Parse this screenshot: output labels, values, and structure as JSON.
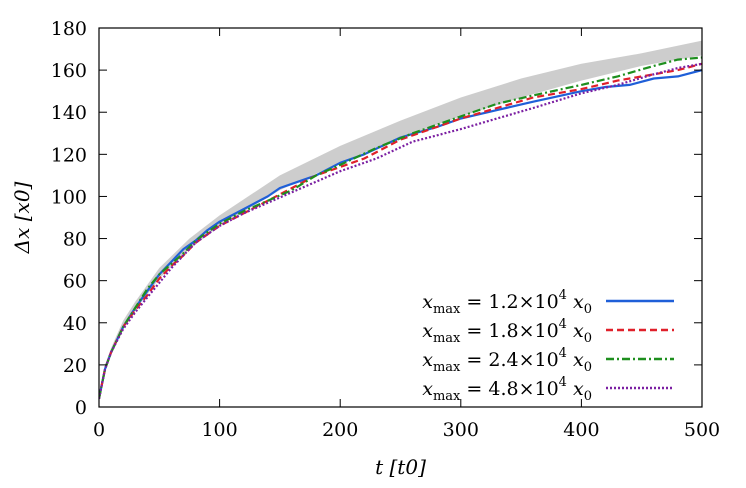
{
  "chart_data": {
    "type": "line",
    "xlabel": "t [t0]",
    "ylabel": "Δx [x0]",
    "xlim": [
      0,
      500
    ],
    "ylim": [
      0,
      180
    ],
    "xticks": [
      0,
      100,
      200,
      300,
      400,
      500
    ],
    "yticks": [
      0,
      20,
      40,
      60,
      80,
      100,
      120,
      140,
      160,
      180
    ],
    "xtick_labels": [
      "0",
      "100",
      "200",
      "300",
      "400",
      "500"
    ],
    "ytick_labels": [
      "0",
      "20",
      "40",
      "60",
      "80",
      "100",
      "120",
      "140",
      "160",
      "180"
    ],
    "grid": false,
    "legend_position": "bottom-right",
    "band": {
      "x": [
        0,
        5,
        10,
        20,
        30,
        50,
        75,
        100,
        150,
        200,
        250,
        300,
        350,
        400,
        450,
        500
      ],
      "lower": [
        4,
        17,
        25,
        37,
        46,
        61,
        75,
        86,
        103,
        116,
        128,
        138,
        147,
        155,
        162,
        167
      ],
      "upper": [
        6,
        20,
        28,
        41,
        50,
        66,
        80,
        91,
        110,
        124,
        136,
        147,
        156,
        163,
        168,
        174
      ],
      "color": "#c8c8c8"
    },
    "series": [
      {
        "name": "xmax = 1.2×10^4 x0",
        "label_var": "x",
        "label_sub": "max",
        "label_eq": " = 1.2×10",
        "label_exp": "4",
        "label_unit": " x",
        "label_unit_sub": "0",
        "color": "#1f5fd8",
        "dash": "",
        "x": [
          0,
          5,
          10,
          20,
          30,
          40,
          50,
          60,
          70,
          80,
          90,
          100,
          120,
          140,
          150,
          160,
          180,
          200,
          220,
          250,
          280,
          300,
          330,
          360,
          400,
          420,
          440,
          460,
          480,
          500
        ],
        "values": [
          4,
          18,
          26,
          38,
          47,
          55,
          63,
          69,
          75,
          79,
          84,
          88,
          94,
          100,
          104,
          106,
          110,
          116,
          120,
          128,
          133,
          137,
          141,
          145,
          150,
          152,
          153,
          156,
          157,
          160
        ]
      },
      {
        "name": "xmax = 1.8×10^4 x0",
        "label_var": "x",
        "label_sub": "max",
        "label_eq": " = 1.8×10",
        "label_exp": "4",
        "label_unit": " x",
        "label_unit_sub": "0",
        "color": "#e0202a",
        "dash": "7,4",
        "x": [
          0,
          5,
          10,
          20,
          30,
          40,
          50,
          60,
          70,
          80,
          90,
          100,
          120,
          140,
          160,
          180,
          200,
          220,
          250,
          280,
          300,
          330,
          360,
          400,
          430,
          460,
          480,
          500
        ],
        "values": [
          4,
          18,
          26,
          38,
          46,
          53,
          61,
          67,
          72,
          78,
          82,
          86,
          92,
          98,
          104,
          110,
          114,
          118,
          127,
          133,
          137,
          142,
          147,
          151,
          155,
          158,
          160,
          163
        ]
      },
      {
        "name": "xmax = 2.4×10^4 x0",
        "label_var": "x",
        "label_sub": "max",
        "label_eq": " = 2.4×10",
        "label_exp": "4",
        "label_unit": " x",
        "label_unit_sub": "0",
        "color": "#1e8f1e",
        "dash": "8,3,2,3",
        "x": [
          0,
          5,
          10,
          20,
          30,
          40,
          50,
          60,
          70,
          80,
          90,
          100,
          120,
          140,
          160,
          180,
          200,
          215,
          230,
          260,
          300,
          330,
          360,
          400,
          430,
          460,
          480,
          500
        ],
        "values": [
          4,
          18,
          26,
          38,
          47,
          56,
          63,
          68,
          73,
          79,
          83,
          87,
          93,
          98,
          103,
          110,
          115,
          119,
          123,
          130,
          138,
          144,
          148,
          153,
          157,
          162,
          165,
          166
        ]
      },
      {
        "name": "xmax = 4.8×10^4 x0",
        "label_var": "x",
        "label_sub": "max",
        "label_eq": " = 4.8×10",
        "label_exp": "4",
        "label_unit": " x",
        "label_unit_sub": "0",
        "color": "#7b1fa2",
        "dash": "2,2",
        "x": [
          0,
          5,
          10,
          20,
          30,
          40,
          50,
          60,
          70,
          80,
          90,
          100,
          120,
          140,
          160,
          180,
          200,
          230,
          260,
          300,
          330,
          360,
          400,
          430,
          460,
          480,
          500
        ],
        "values": [
          4,
          18,
          26,
          37,
          45,
          52,
          59,
          66,
          72,
          78,
          82,
          86,
          92,
          97,
          102,
          107,
          112,
          118,
          126,
          132,
          137,
          142,
          149,
          153,
          158,
          161,
          163
        ]
      }
    ]
  }
}
